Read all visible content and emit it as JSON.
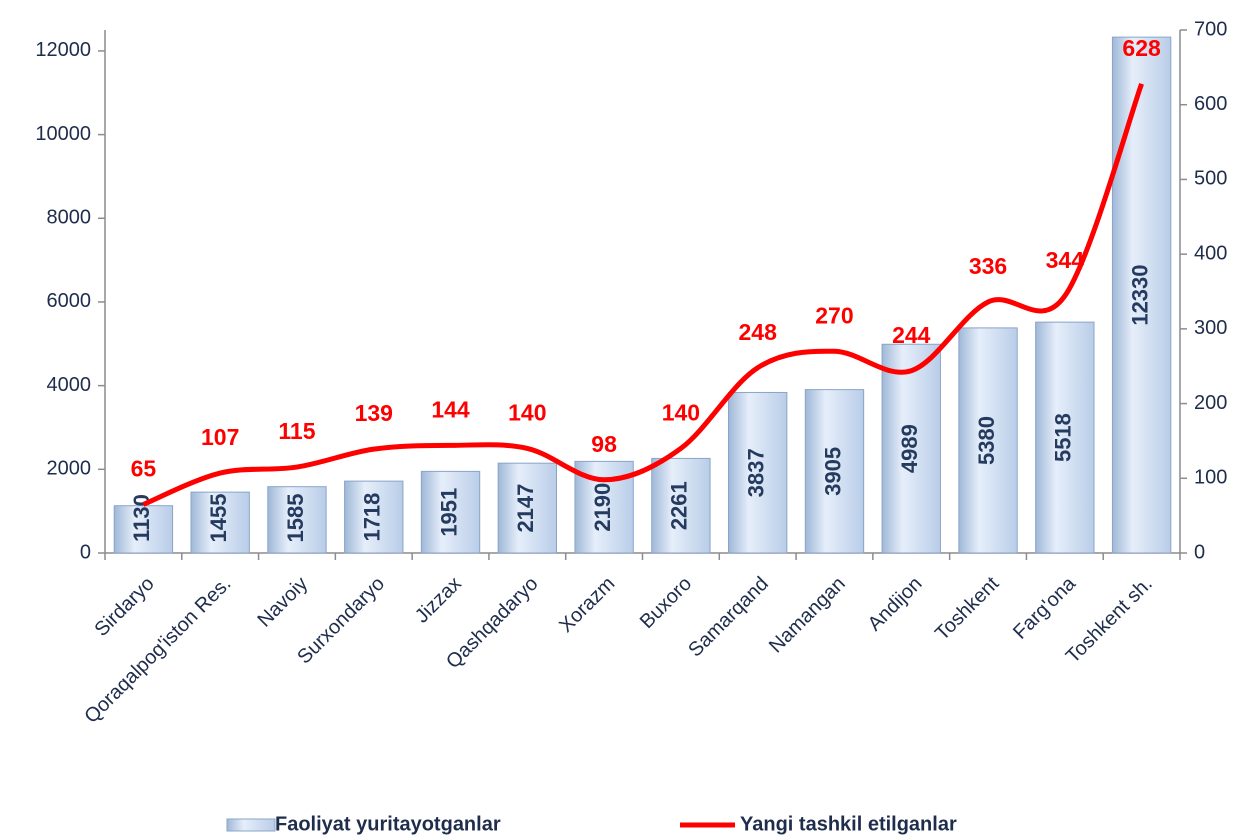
{
  "chart_data": {
    "type": "bar_line",
    "categories": [
      "Sirdaryo",
      "Qoraqalpog'iston Res.",
      "Navoiy",
      "Surxondaryo",
      "Jizzax",
      "Qashqadaryo",
      "Xorazm",
      "Buxoro",
      "Samarqand",
      "Namangan",
      "Andijon",
      "Toshkent",
      "Farg'ona",
      "Toshkent sh."
    ],
    "series": [
      {
        "name": "Faoliyat yuritayotganlar",
        "type": "bar",
        "color": "#c6d9f1",
        "values": [
          1130,
          1455,
          1585,
          1718,
          1951,
          2147,
          2190,
          2261,
          3837,
          3905,
          4989,
          5380,
          5518,
          12330
        ]
      },
      {
        "name": "Yangi tashkil etilganlar",
        "type": "line",
        "axis": "y2",
        "color": "#ff0000",
        "values": [
          65,
          107,
          115,
          139,
          144,
          140,
          98,
          140,
          248,
          270,
          244,
          336,
          344,
          628
        ]
      }
    ],
    "ylim": [
      0,
      12500
    ],
    "yticks": [
      0,
      2000,
      4000,
      6000,
      8000,
      10000,
      12000
    ],
    "y2lim": [
      0,
      700
    ],
    "y2ticks": [
      0,
      100,
      200,
      300,
      400,
      500,
      600,
      700
    ],
    "legend": "bottom"
  }
}
